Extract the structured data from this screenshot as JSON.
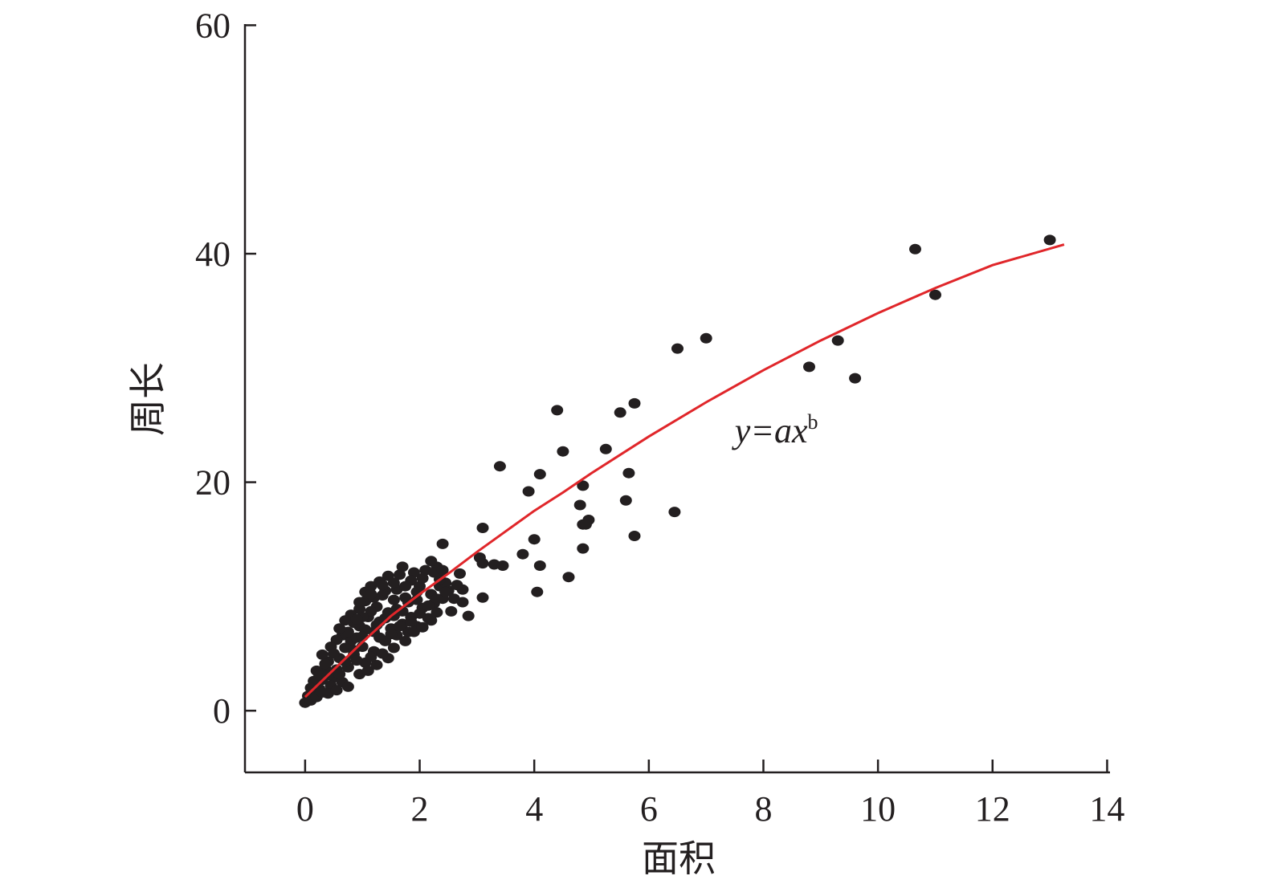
{
  "chart_data": {
    "type": "scatter",
    "title": "",
    "xlabel": "面积",
    "ylabel": "周长",
    "xlim": [
      -1.05,
      14.05
    ],
    "ylim": [
      -5.4,
      60.1
    ],
    "xticks": [
      "0",
      "2",
      "4",
      "6",
      "8",
      "10",
      "12",
      "14"
    ],
    "yticks": [
      "0",
      "20",
      "40",
      "60"
    ],
    "grid": false,
    "legend": "none",
    "annotation": {
      "base": "y=ax",
      "superscript": "b",
      "position": [
        7.5,
        23.5
      ]
    },
    "fit": {
      "model": "power",
      "points": [
        [
          0.0,
          1.2
        ],
        [
          0.5,
          3.6
        ],
        [
          1.0,
          6.0
        ],
        [
          1.5,
          8.3
        ],
        [
          2.0,
          10.2
        ],
        [
          2.5,
          12.0
        ],
        [
          3.0,
          13.9
        ],
        [
          3.5,
          15.7
        ],
        [
          4.0,
          17.5
        ],
        [
          4.5,
          19.1
        ],
        [
          5.0,
          20.8
        ],
        [
          6.0,
          24.0
        ],
        [
          7.0,
          27.0
        ],
        [
          8.0,
          29.8
        ],
        [
          9.0,
          32.4
        ],
        [
          10.0,
          34.8
        ],
        [
          11.0,
          37.0
        ],
        [
          12.0,
          39.0
        ],
        [
          13.25,
          40.8
        ]
      ],
      "color": "#e0262a"
    },
    "series": [
      {
        "color": "#231f20",
        "points": [
          [
            13.0,
            41.2
          ],
          [
            10.65,
            40.4
          ],
          [
            11.0,
            36.4
          ],
          [
            9.3,
            32.4
          ],
          [
            8.8,
            30.1
          ],
          [
            9.6,
            29.1
          ],
          [
            7.0,
            32.6
          ],
          [
            6.5,
            31.7
          ],
          [
            6.45,
            17.4
          ],
          [
            5.75,
            26.9
          ],
          [
            5.5,
            26.1
          ],
          [
            5.25,
            22.9
          ],
          [
            5.65,
            20.8
          ],
          [
            5.6,
            18.4
          ],
          [
            5.75,
            15.3
          ],
          [
            4.4,
            26.3
          ],
          [
            4.5,
            22.7
          ],
          [
            4.85,
            19.7
          ],
          [
            4.8,
            18.0
          ],
          [
            4.95,
            16.7
          ],
          [
            4.85,
            16.3
          ],
          [
            4.9,
            16.3
          ],
          [
            4.85,
            14.2
          ],
          [
            4.6,
            11.7
          ],
          [
            4.1,
            20.7
          ],
          [
            3.9,
            19.2
          ],
          [
            3.4,
            21.4
          ],
          [
            4.0,
            15.0
          ],
          [
            3.8,
            13.7
          ],
          [
            4.1,
            12.7
          ],
          [
            4.05,
            10.4
          ],
          [
            3.1,
            16.0
          ],
          [
            3.05,
            13.4
          ],
          [
            3.3,
            12.8
          ],
          [
            3.45,
            12.7
          ],
          [
            3.1,
            9.9
          ],
          [
            3.1,
            12.9
          ],
          [
            2.85,
            8.3
          ],
          [
            2.7,
            12.0
          ],
          [
            2.75,
            10.6
          ],
          [
            2.75,
            9.5
          ],
          [
            2.4,
            14.6
          ],
          [
            2.3,
            12.6
          ],
          [
            2.2,
            13.1
          ],
          [
            2.5,
            10.5
          ],
          [
            2.55,
            8.7
          ],
          [
            2.35,
            10.9
          ],
          [
            2.4,
            9.8
          ],
          [
            2.45,
            11.2
          ],
          [
            2.25,
            9.4
          ],
          [
            2.1,
            12.3
          ],
          [
            1.9,
            12.1
          ],
          [
            1.7,
            12.6
          ],
          [
            1.85,
            11.4
          ],
          [
            2.0,
            10.9
          ],
          [
            2.05,
            9.0
          ],
          [
            2.15,
            8.1
          ],
          [
            1.95,
            7.4
          ],
          [
            1.8,
            6.9
          ],
          [
            1.65,
            11.9
          ],
          [
            1.45,
            11.8
          ],
          [
            1.3,
            11.3
          ],
          [
            1.15,
            10.9
          ],
          [
            1.05,
            10.4
          ],
          [
            1.35,
            10.1
          ],
          [
            1.55,
            9.7
          ],
          [
            1.75,
            9.9
          ],
          [
            1.6,
            8.9
          ],
          [
            1.45,
            8.6
          ],
          [
            1.25,
            9.1
          ],
          [
            1.05,
            9.6
          ],
          [
            0.95,
            8.9
          ],
          [
            1.1,
            8.2
          ],
          [
            1.3,
            7.8
          ],
          [
            1.5,
            7.2
          ],
          [
            1.7,
            7.6
          ],
          [
            1.6,
            6.6
          ],
          [
            1.4,
            6.1
          ],
          [
            1.2,
            6.9
          ],
          [
            0.95,
            7.4
          ],
          [
            0.8,
            8.4
          ],
          [
            0.85,
            7.7
          ],
          [
            0.7,
            7.9
          ],
          [
            0.65,
            6.6
          ],
          [
            0.8,
            6.1
          ],
          [
            1.0,
            5.6
          ],
          [
            1.2,
            5.2
          ],
          [
            1.45,
            4.6
          ],
          [
            1.05,
            4.2
          ],
          [
            0.85,
            4.9
          ],
          [
            0.7,
            5.5
          ],
          [
            0.55,
            6.2
          ],
          [
            0.45,
            5.6
          ],
          [
            0.6,
            4.6
          ],
          [
            0.75,
            3.8
          ],
          [
            0.55,
            3.6
          ],
          [
            0.4,
            4.3
          ],
          [
            0.3,
            4.9
          ],
          [
            0.35,
            3.7
          ],
          [
            0.5,
            2.9
          ],
          [
            0.65,
            2.5
          ],
          [
            0.45,
            2.2
          ],
          [
            0.3,
            2.7
          ],
          [
            0.2,
            3.5
          ],
          [
            0.15,
            2.6
          ],
          [
            0.25,
            1.9
          ],
          [
            0.4,
            1.5
          ],
          [
            0.15,
            1.4
          ],
          [
            0.05,
            1.3
          ],
          [
            0.0,
            0.7
          ],
          [
            0.1,
            0.9
          ],
          [
            0.2,
            1.2
          ],
          [
            0.55,
            1.8
          ],
          [
            0.75,
            2.1
          ],
          [
            0.95,
            3.2
          ],
          [
            1.1,
            3.5
          ],
          [
            1.25,
            4.0
          ],
          [
            1.35,
            5.0
          ],
          [
            1.55,
            5.5
          ],
          [
            1.75,
            6.1
          ],
          [
            1.9,
            6.9
          ],
          [
            2.05,
            7.3
          ],
          [
            2.2,
            7.9
          ],
          [
            2.3,
            8.6
          ],
          [
            1.85,
            8.2
          ],
          [
            1.95,
            9.7
          ],
          [
            2.2,
            10.2
          ],
          [
            2.35,
            11.5
          ],
          [
            2.6,
            9.8
          ],
          [
            2.65,
            11.0
          ],
          [
            1.6,
            10.6
          ],
          [
            1.4,
            10.5
          ],
          [
            1.2,
            9.9
          ],
          [
            1.15,
            8.7
          ],
          [
            1.0,
            8.2
          ],
          [
            0.9,
            6.4
          ],
          [
            0.75,
            6.9
          ],
          [
            0.6,
            7.2
          ],
          [
            0.5,
            5.0
          ],
          [
            0.35,
            4.1
          ],
          [
            0.25,
            3.1
          ],
          [
            0.1,
            2.0
          ],
          [
            0.3,
            1.6
          ],
          [
            0.6,
            3.2
          ],
          [
            0.9,
            4.4
          ],
          [
            1.15,
            4.7
          ],
          [
            1.3,
            6.4
          ],
          [
            1.5,
            6.7
          ],
          [
            1.65,
            7.4
          ],
          [
            1.85,
            7.8
          ],
          [
            2.0,
            8.5
          ],
          [
            2.15,
            9.2
          ],
          [
            2.3,
            9.8
          ],
          [
            2.45,
            10.4
          ],
          [
            1.75,
            10.9
          ],
          [
            1.55,
            11.2
          ],
          [
            1.35,
            11.0
          ],
          [
            1.15,
            10.2
          ],
          [
            0.95,
            9.5
          ],
          [
            0.9,
            8.0
          ],
          [
            1.05,
            7.1
          ],
          [
            1.25,
            7.5
          ],
          [
            1.4,
            8.1
          ],
          [
            1.55,
            8.3
          ],
          [
            1.7,
            8.7
          ],
          [
            1.8,
            9.5
          ],
          [
            1.95,
            10.4
          ],
          [
            2.05,
            11.6
          ],
          [
            2.25,
            12.1
          ],
          [
            2.4,
            12.3
          ],
          [
            0.85,
            5.3
          ],
          [
            1.0,
            6.5
          ],
          [
            0.7,
            4.3
          ],
          [
            0.4,
            3.1
          ]
        ]
      }
    ]
  }
}
